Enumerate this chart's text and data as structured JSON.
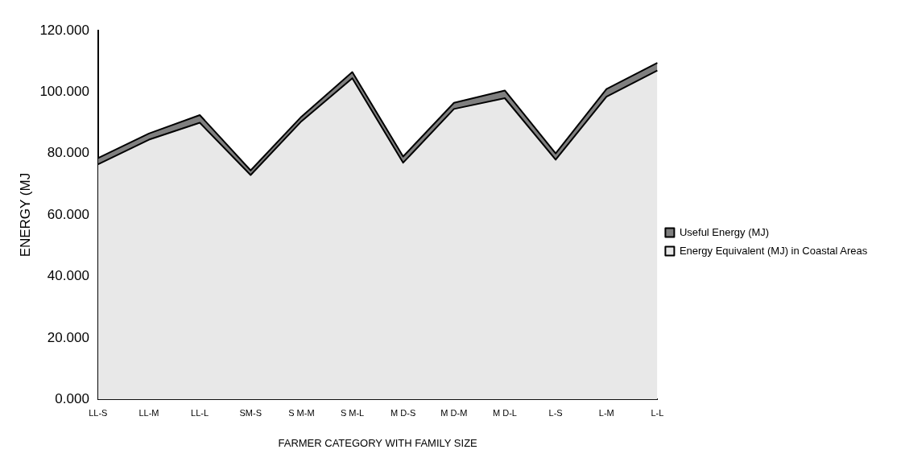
{
  "chart_data": {
    "type": "area",
    "stacked": true,
    "xlabel": "FARMER CATEGORY WITH FAMILY SIZE",
    "ylabel": "ENERGY (MJ",
    "categories": [
      "LL-S",
      "LL-M",
      "LL-L",
      "SM-S",
      "S M-M",
      "S M-L",
      "M D-S",
      "M D-M",
      "M D-L",
      "L-S",
      "L-M",
      "L-L"
    ],
    "series": [
      {
        "name": "Energy Equivalent (MJ) in Coastal Areas",
        "color": "#e8e8e8",
        "values": [
          76.5,
          84.5,
          90,
          73,
          90.5,
          104.5,
          77,
          94.5,
          98,
          78,
          98.5,
          107
        ]
      },
      {
        "name": "Useful Energy (MJ)",
        "color": "#7f7f7f",
        "values": [
          2,
          2,
          2.5,
          1.5,
          1.5,
          2,
          2,
          2,
          2.5,
          2,
          2.5,
          2.5
        ]
      }
    ],
    "ylim": [
      0,
      120
    ],
    "yticks": [
      {
        "value": 0,
        "label": "0.000"
      },
      {
        "value": 20,
        "label": "20.000"
      },
      {
        "value": 40,
        "label": "40.000"
      },
      {
        "value": 60,
        "label": "60.000"
      },
      {
        "value": 80,
        "label": "80.000"
      },
      {
        "value": 100,
        "label": "100.000"
      },
      {
        "value": 120,
        "label": "120.000"
      }
    ],
    "grid": false,
    "legend": "right"
  }
}
